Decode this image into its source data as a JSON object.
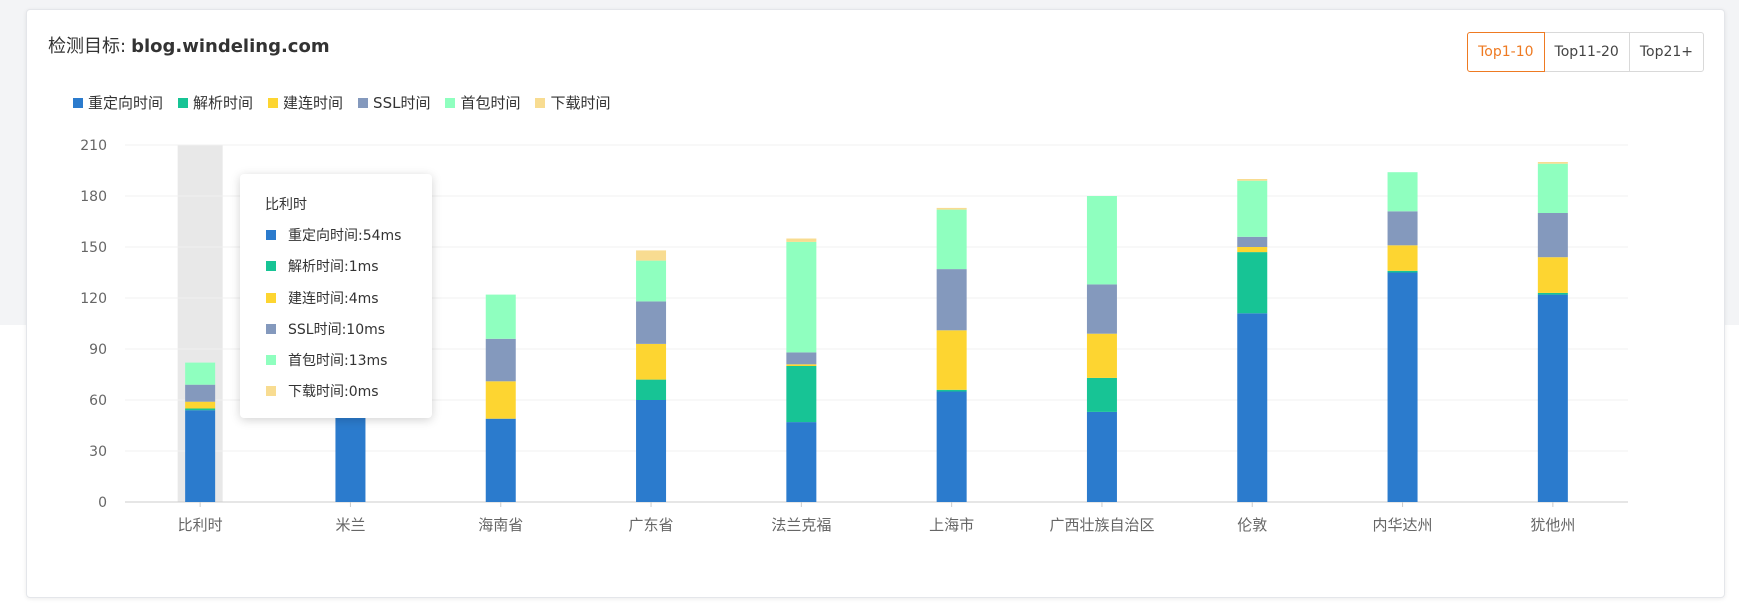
{
  "header": {
    "title_label": "检测目标:",
    "title_value": "blog.windeling.com"
  },
  "range_buttons": [
    "Top1-10",
    "Top11-20",
    "Top21+"
  ],
  "active_button": "Top1-10",
  "colors": {
    "redirect": "#2b7bcd",
    "dns": "#17c495",
    "connect": "#fdd531",
    "ssl": "#8499bd",
    "first_byte": "#8fffbf",
    "download": "#f8dc91",
    "accent": "#ee7a22",
    "highlight_band": "#e8e8e8"
  },
  "tooltip": {
    "title": "比利时",
    "rows": [
      "重定向时间:54ms",
      "解析时间:1ms",
      "建连时间:4ms",
      "SSL时间:10ms",
      "首包时间:13ms",
      "下载时间:0ms"
    ]
  },
  "chart_data": {
    "type": "bar",
    "stacked": true,
    "categories": [
      "比利时",
      "米兰",
      "海南省",
      "广东省",
      "法兰克福",
      "上海市",
      "广西壮族自治区",
      "伦敦",
      "内华达州",
      "犹他州"
    ],
    "series": [
      {
        "name": "重定向时间",
        "values": [
          54,
          50,
          49,
          60,
          47,
          65,
          53,
          111,
          135,
          122
        ]
      },
      {
        "name": "解析时间",
        "values": [
          1,
          0,
          0,
          12,
          33,
          1,
          20,
          36,
          1,
          1
        ]
      },
      {
        "name": "建连时间",
        "values": [
          4,
          0,
          22,
          21,
          1,
          35,
          26,
          3,
          15,
          21
        ]
      },
      {
        "name": "SSL时间",
        "values": [
          10,
          0,
          25,
          25,
          7,
          36,
          29,
          6,
          20,
          26
        ]
      },
      {
        "name": "首包时间",
        "values": [
          13,
          0,
          26,
          24,
          65,
          35,
          52,
          33,
          23,
          29
        ]
      },
      {
        "name": "下载时间",
        "values": [
          0,
          0,
          0,
          6,
          2,
          1,
          0,
          1,
          0,
          1
        ]
      }
    ],
    "ylim": [
      0,
      210
    ],
    "yticks": [
      0,
      30,
      60,
      90,
      120,
      150,
      180,
      210
    ],
    "highlighted_category": "比利时",
    "grid": true,
    "legend": "top-left"
  }
}
